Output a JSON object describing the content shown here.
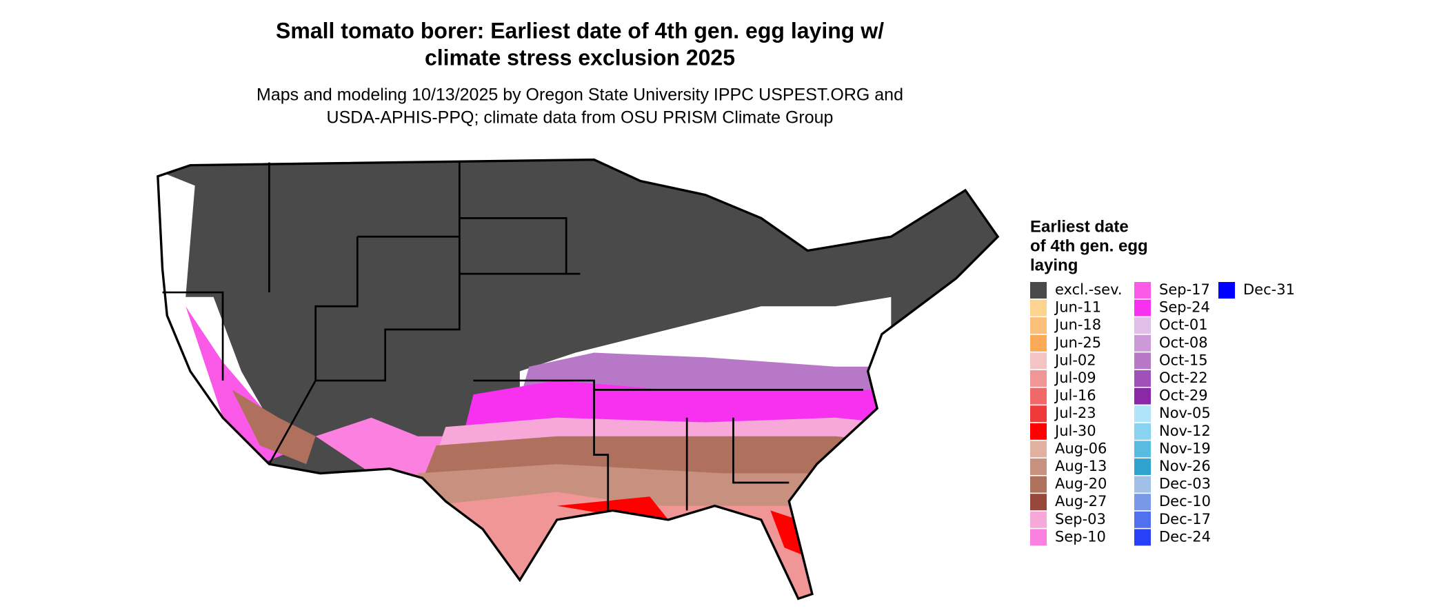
{
  "title": [
    "Small tomato borer: Earliest date of 4th gen. egg laying w/",
    "climate stress exclusion 2025"
  ],
  "subtitle": [
    "Maps and modeling 10/13/2025 by Oregon State University IPPC USPEST.ORG and",
    "USDA-APHIS-PPQ; climate data from OSU PRISM Climate Group"
  ],
  "legend": {
    "title": [
      "Earliest date",
      "of 4th gen. egg",
      "laying"
    ],
    "items": [
      {
        "label": "excl.-sev.",
        "color": "#4a4a4a"
      },
      {
        "label": "Jun-11",
        "color": "#fdd390"
      },
      {
        "label": "Jun-18",
        "color": "#fdc07a"
      },
      {
        "label": "Jun-25",
        "color": "#fbaa5a"
      },
      {
        "label": "Jul-02",
        "color": "#f4c4c4"
      },
      {
        "label": "Jul-09",
        "color": "#f09696"
      },
      {
        "label": "Jul-16",
        "color": "#f06868"
      },
      {
        "label": "Jul-23",
        "color": "#f03a3a"
      },
      {
        "label": "Jul-30",
        "color": "#ff0000"
      },
      {
        "label": "Aug-06",
        "color": "#e0b0a0"
      },
      {
        "label": "Aug-13",
        "color": "#c8907e"
      },
      {
        "label": "Aug-20",
        "color": "#b0705e"
      },
      {
        "label": "Aug-27",
        "color": "#98483a"
      },
      {
        "label": "Sep-03",
        "color": "#f8a8d8"
      },
      {
        "label": "Sep-10",
        "color": "#fb80e0"
      },
      {
        "label": "Sep-17",
        "color": "#fb5ae8"
      },
      {
        "label": "Sep-24",
        "color": "#f830f0"
      },
      {
        "label": "Oct-01",
        "color": "#e0c0e8"
      },
      {
        "label": "Oct-08",
        "color": "#cc9ad8"
      },
      {
        "label": "Oct-15",
        "color": "#b878c8"
      },
      {
        "label": "Oct-22",
        "color": "#a050b8"
      },
      {
        "label": "Oct-29",
        "color": "#8a28a8"
      },
      {
        "label": "Nov-05",
        "color": "#b0e4f8"
      },
      {
        "label": "Nov-12",
        "color": "#88d4f0"
      },
      {
        "label": "Nov-19",
        "color": "#58bce0"
      },
      {
        "label": "Nov-26",
        "color": "#30a4d0"
      },
      {
        "label": "Dec-03",
        "color": "#a0c0e8"
      },
      {
        "label": "Dec-10",
        "color": "#7898e8"
      },
      {
        "label": "Dec-17",
        "color": "#5070f0"
      },
      {
        "label": "Dec-24",
        "color": "#2840f8"
      },
      {
        "label": "Dec-31",
        "color": "#0000ff"
      }
    ]
  }
}
